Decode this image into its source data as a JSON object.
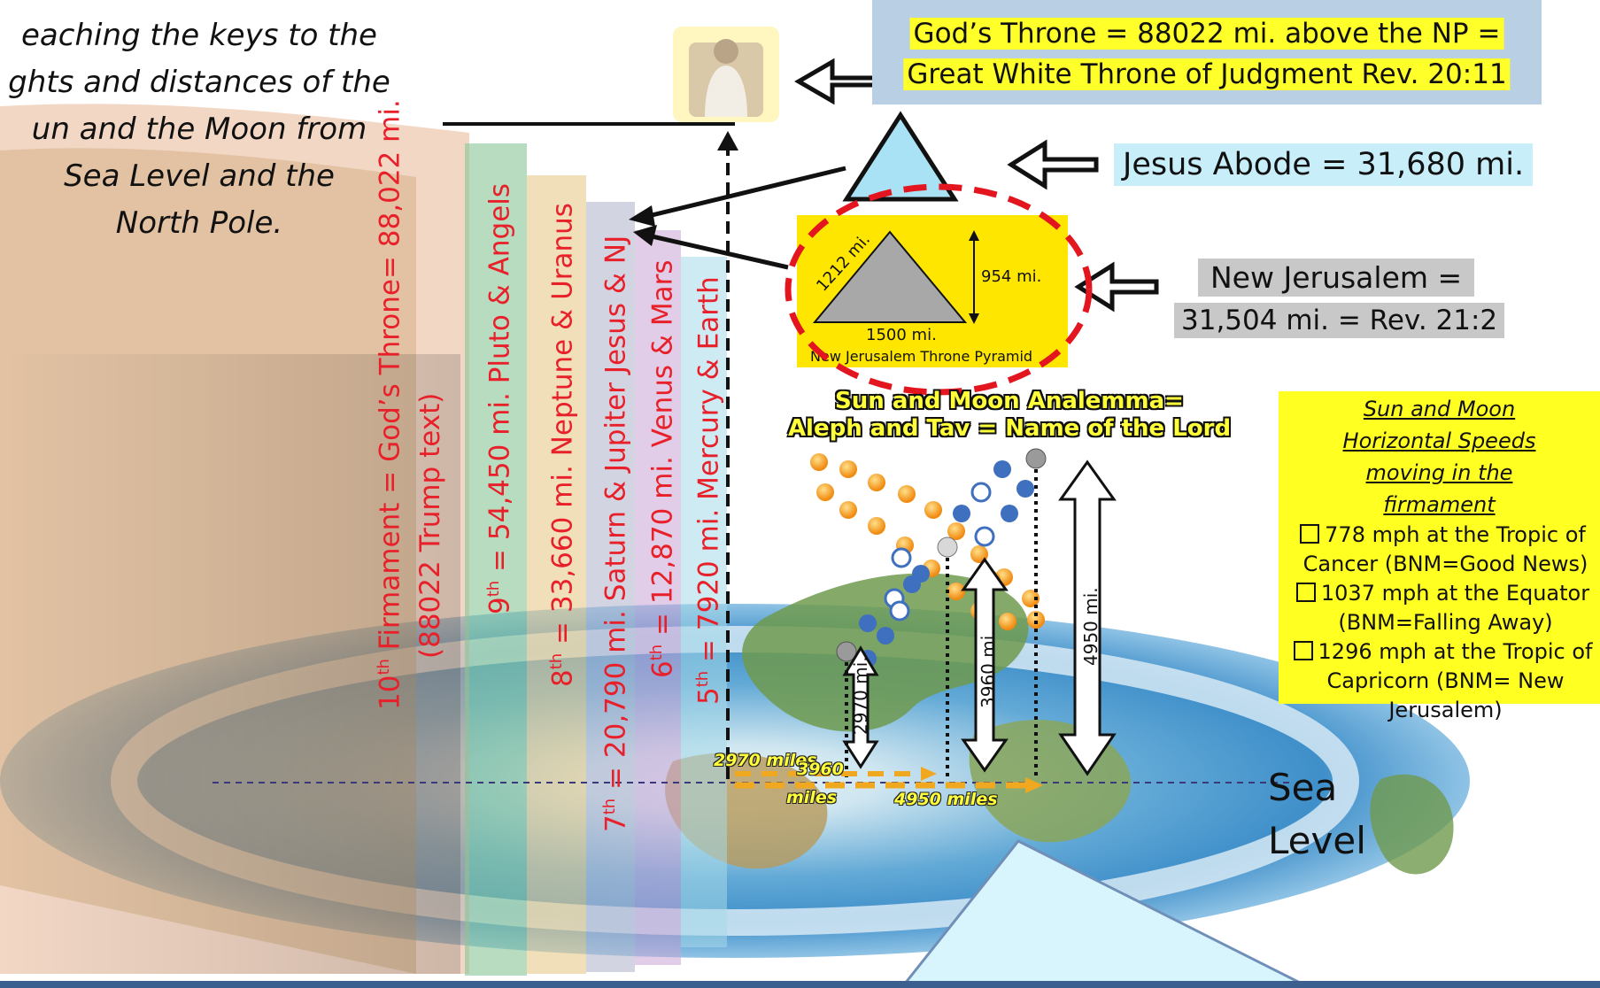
{
  "intro_lines": [
    "eaching the keys to the",
    "ghts and distances of the",
    "un and the Moon from",
    "Sea Level and the",
    "North Pole."
  ],
  "firmament_labels": [
    {
      "pre": "10",
      "sup": "th",
      "text": " Firmament = God’s Throne= 88,022 mi."
    },
    {
      "pre": "",
      "sup": "",
      "text": "(88022 Trump text)"
    },
    {
      "pre": "9",
      "sup": "th",
      "text": " = 54,450 mi. Pluto & Angels"
    },
    {
      "pre": "8",
      "sup": "th",
      "text": " = 33,660 mi. Neptune & Uranus"
    },
    {
      "pre": "7",
      "sup": "th",
      "text": " = 20,790 mi. Saturn & Jupiter Jesus & NJ"
    },
    {
      "pre": "6",
      "sup": "th",
      "text": " = 12,870 mi. Venus & Mars"
    },
    {
      "pre": "5",
      "sup": "th",
      "text": " = 7920 mi. Mercury & Earth"
    }
  ],
  "gods_throne": {
    "line1": "God’s Throne = 88022 mi. above the NP =",
    "line2": "Great White Throne of Judgment Rev. 20:11"
  },
  "jesus_abode": "Jesus Abode = 31,680 mi.",
  "new_jerusalem": {
    "line1": "New Jerusalem =",
    "line2": "31,504 mi. = Rev. 21:2"
  },
  "pyramid": {
    "side": "1212 mi.",
    "height": "954 mi.",
    "base": "1500 mi.",
    "caption": "New Jerusalem Throne Pyramid"
  },
  "analemma": {
    "line1": "Sun and Moon Analemma=",
    "line2": "Aleph and Tav = Name of the Lord"
  },
  "speeds": {
    "heading": "Sun and Moon Horizontal Speeds moving in the firmament",
    "items": [
      "778 mph at the Tropic of Cancer (BNM=Good News)",
      "1037 mph at the Equator (BNM=Falling Away)",
      "1296 mph at the Tropic of Capricorn (BNM= New Jerusalem)"
    ]
  },
  "heights": {
    "h1": "2970 mi.",
    "h2": "3960 mi.",
    "h3": "4950 mi."
  },
  "distances": {
    "d1": "2970 miles",
    "d2": "3960",
    "d2b": "miles",
    "d3": "4950 miles"
  },
  "sea_level": {
    "line1": "Sea",
    "line2": "Level"
  },
  "colors": {
    "firmament_text": "#e8202a",
    "highlight": "#ffff29",
    "gods_box": "#b9cfe4",
    "speed_box": "#ffff22"
  }
}
